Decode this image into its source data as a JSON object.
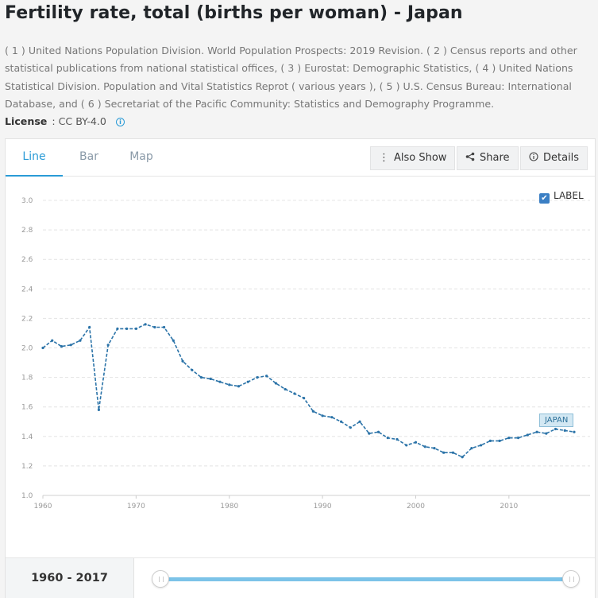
{
  "title": "Fertility rate, total (births per woman) - Japan",
  "sources": "( 1 ) United Nations Population Division. World Population Prospects: 2019 Revision. ( 2 ) Census reports and other statistical publications from national statistical offices, ( 3 ) Eurostat: Demographic Statistics, ( 4 ) United Nations Statistical Division. Population and Vital Statistics Reprot ( various years ), ( 5 ) U.S. Census Bureau: International Database, and ( 6 ) Secretariat of the Pacific Community: Statistics and Demography Programme.",
  "license": {
    "label": "License",
    "value": ": CC BY-4.0",
    "icon": "info-icon"
  },
  "tabs": [
    {
      "label": "Line"
    },
    {
      "label": "Bar"
    },
    {
      "label": "Map"
    }
  ],
  "toolbar": {
    "also_show": "Also Show",
    "share": "Share",
    "details": "Details"
  },
  "legend": {
    "label": "LABEL",
    "checked": true
  },
  "accent_color": "#2a9bd6",
  "line_color": "#2b73a8",
  "chart_data": {
    "type": "line",
    "title": "",
    "xlabel": "",
    "ylabel": "",
    "ylim": [
      1.0,
      3.0
    ],
    "xlim": [
      1960,
      2017
    ],
    "yticks": [
      "1.0",
      "1.2",
      "1.4",
      "1.6",
      "1.8",
      "2.0",
      "2.2",
      "2.4",
      "2.6",
      "2.8",
      "3.0"
    ],
    "xticks": [
      "1960",
      "1970",
      "1980",
      "1990",
      "2000",
      "2010"
    ],
    "grid": true,
    "legend_position": "top-right",
    "series": [
      {
        "name": "JAPAN",
        "x": [
          1960,
          1961,
          1962,
          1963,
          1964,
          1965,
          1966,
          1967,
          1968,
          1969,
          1970,
          1971,
          1972,
          1973,
          1974,
          1975,
          1976,
          1977,
          1978,
          1979,
          1980,
          1981,
          1982,
          1983,
          1984,
          1985,
          1986,
          1987,
          1988,
          1989,
          1990,
          1991,
          1992,
          1993,
          1994,
          1995,
          1996,
          1997,
          1998,
          1999,
          2000,
          2001,
          2002,
          2003,
          2004,
          2005,
          2006,
          2007,
          2008,
          2009,
          2010,
          2011,
          2012,
          2013,
          2014,
          2015,
          2016,
          2017
        ],
        "values": [
          2.0,
          2.05,
          2.01,
          2.02,
          2.05,
          2.14,
          1.58,
          2.02,
          2.13,
          2.13,
          2.13,
          2.16,
          2.14,
          2.14,
          2.05,
          1.91,
          1.85,
          1.8,
          1.79,
          1.77,
          1.75,
          1.74,
          1.77,
          1.8,
          1.81,
          1.76,
          1.72,
          1.69,
          1.66,
          1.57,
          1.54,
          1.53,
          1.5,
          1.46,
          1.5,
          1.42,
          1.43,
          1.39,
          1.38,
          1.34,
          1.36,
          1.33,
          1.32,
          1.29,
          1.29,
          1.26,
          1.32,
          1.34,
          1.37,
          1.37,
          1.39,
          1.39,
          1.41,
          1.43,
          1.42,
          1.45,
          1.44,
          1.43
        ]
      }
    ]
  },
  "range": {
    "label": "1960 - 2017",
    "start": 1960,
    "end": 2017
  }
}
